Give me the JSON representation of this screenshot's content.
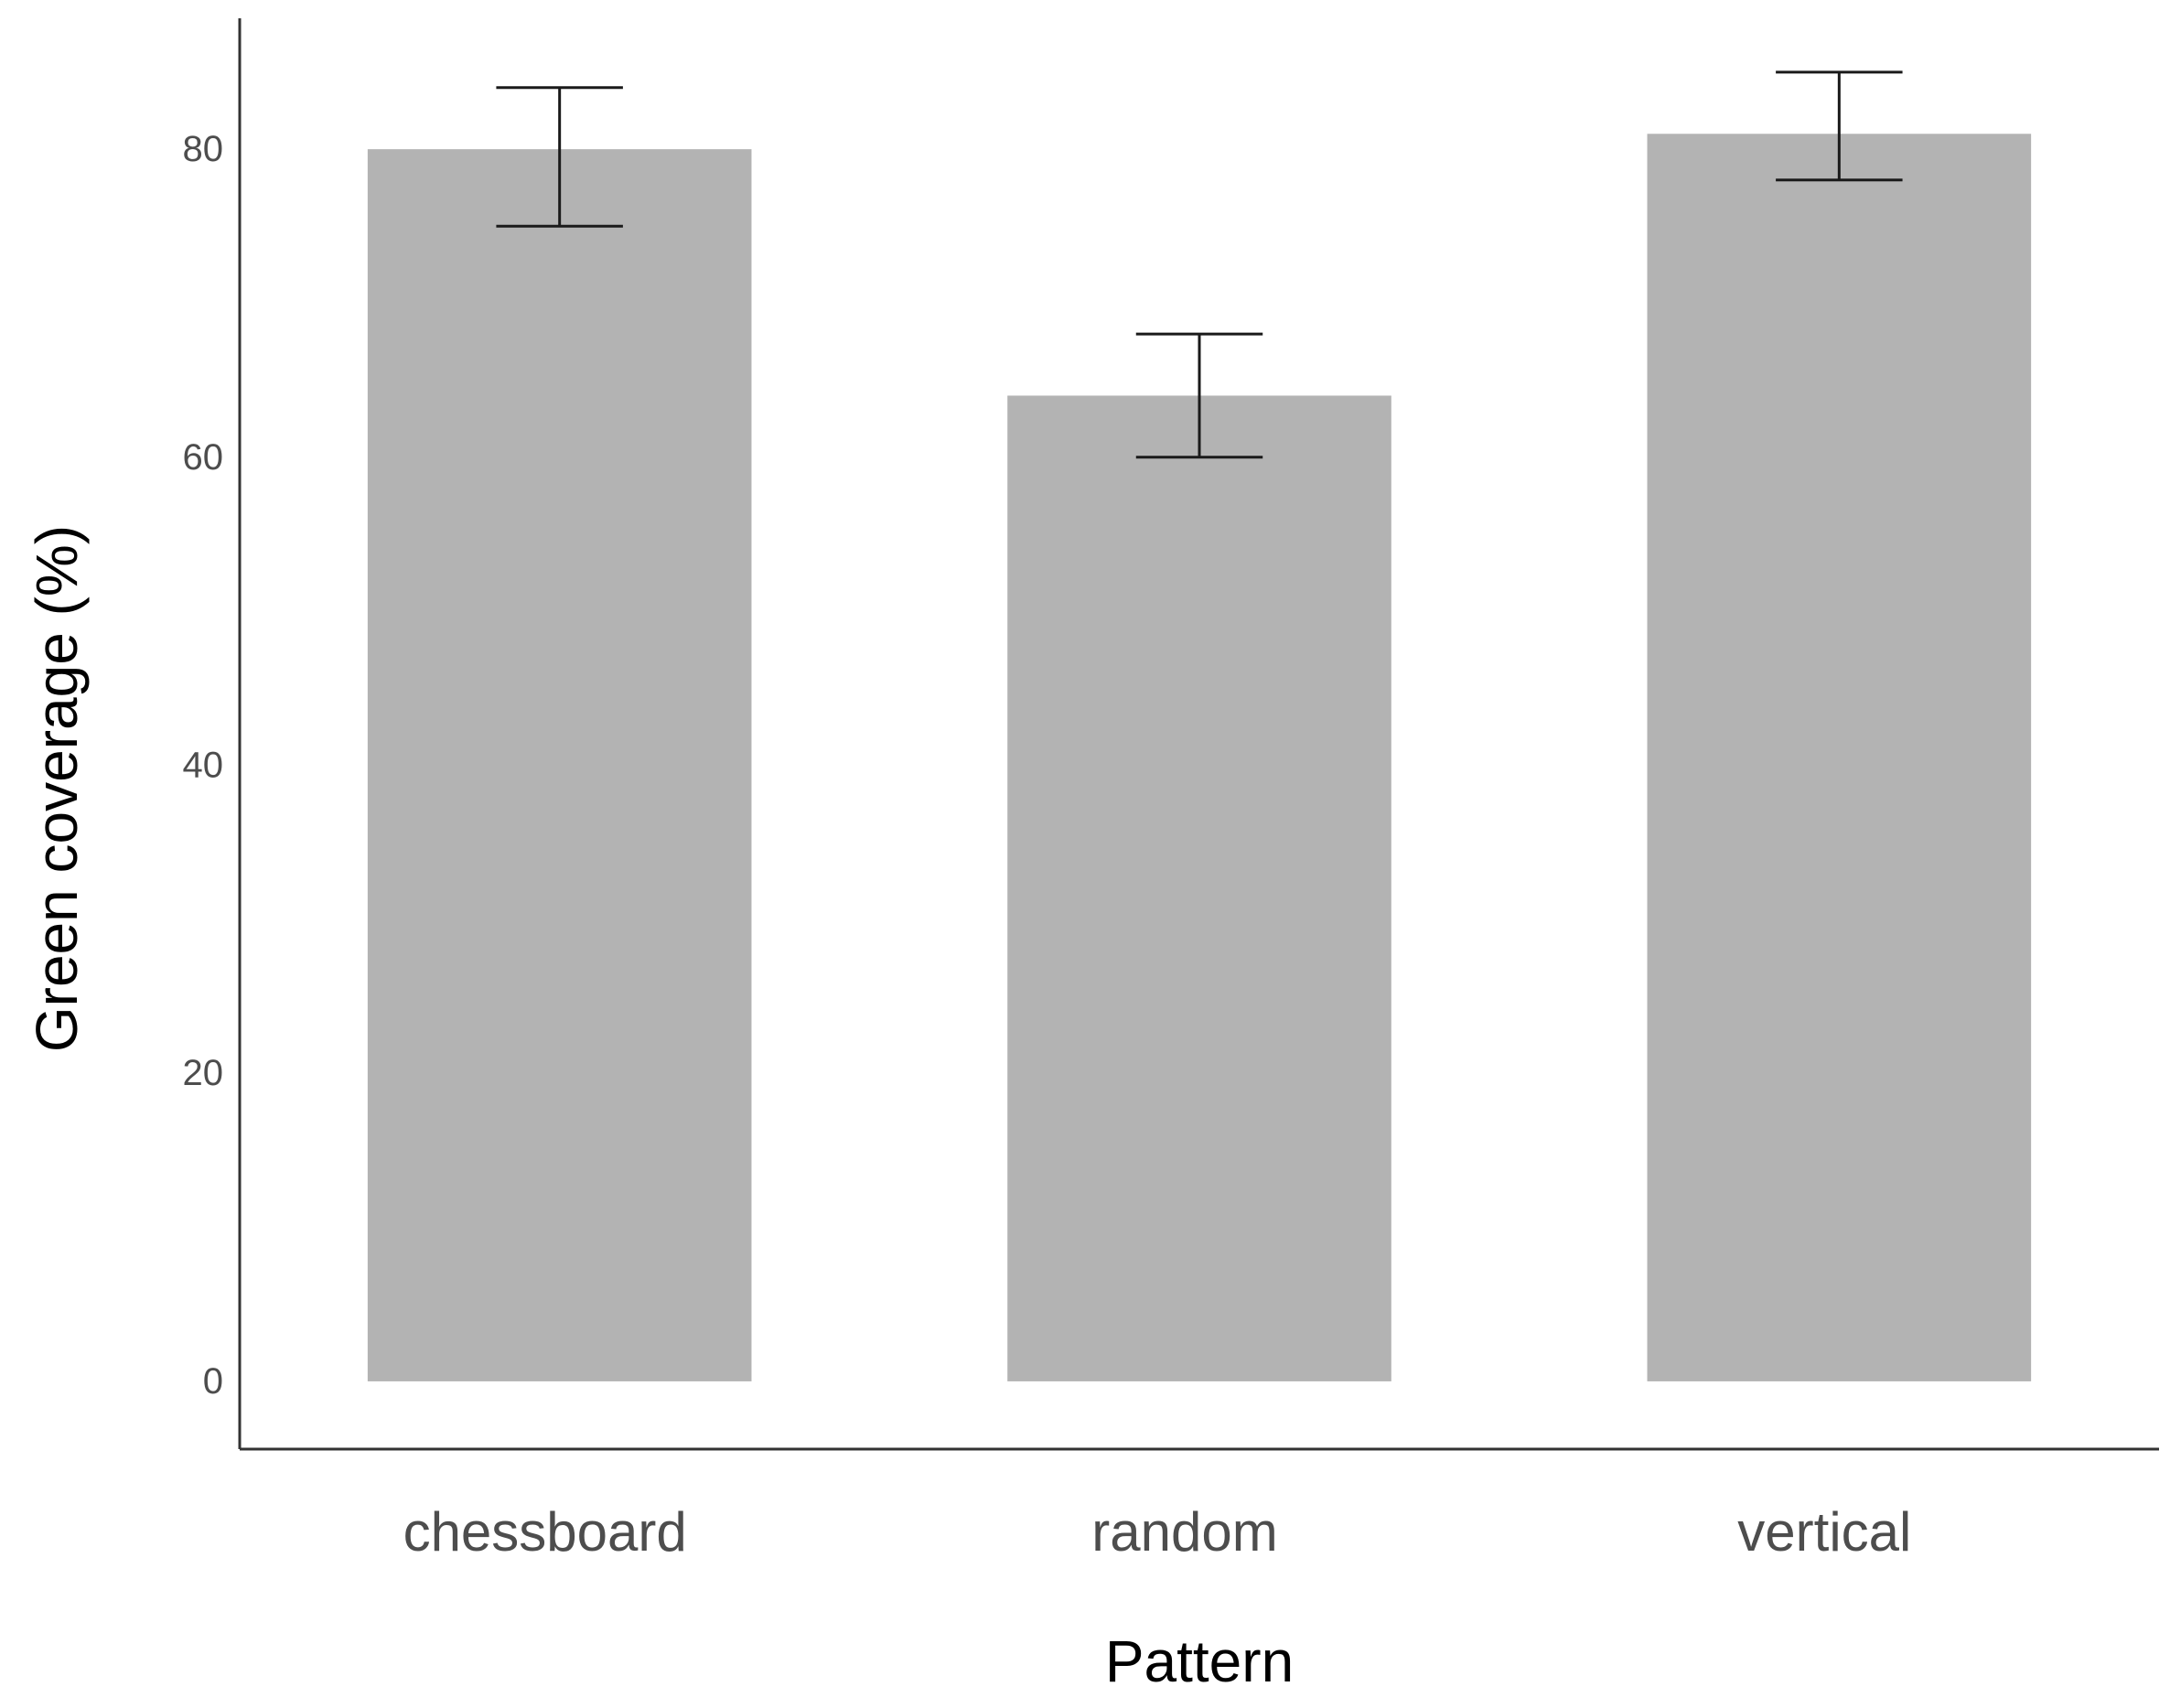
{
  "chart_data": {
    "type": "bar",
    "categories": [
      "chessboard",
      "random",
      "vertical"
    ],
    "values": [
      80,
      64,
      81
    ],
    "error_low": [
      75,
      60,
      78
    ],
    "error_high": [
      84,
      68,
      85
    ],
    "xlabel": "Pattern",
    "ylabel": "Green coverage (%)",
    "yticks": [
      0,
      20,
      40,
      60,
      80
    ],
    "ylim": [
      -4.4,
      88.5
    ],
    "grid": false,
    "legend": "none",
    "bar_color": "#b3b3b3",
    "error_bar_color": "#1a1a1a",
    "axis_color": "#333333"
  }
}
